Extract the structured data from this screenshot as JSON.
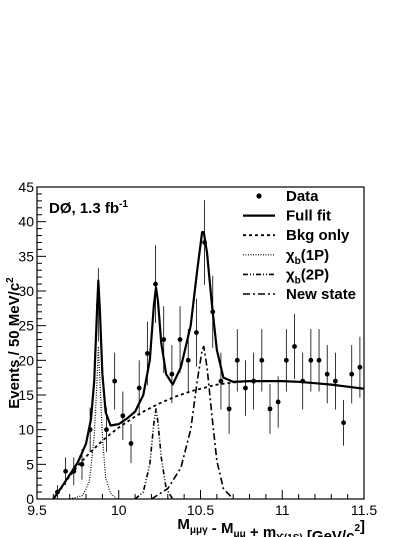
{
  "chart_data": {
    "type": "scatter",
    "annotation": {
      "main": "DØ, 1.3 fb",
      "sup": "-1"
    },
    "xlabel": {
      "parts": [
        {
          "t": "M"
        },
        {
          "t": "μμγ",
          "sub": true
        },
        {
          "t": " - M"
        },
        {
          "t": "μμ",
          "sub": true
        },
        {
          "t": " + m"
        },
        {
          "t": "ϒ(1S)",
          "sub": true
        },
        {
          "t": " [GeV/c"
        },
        {
          "t": "2",
          "sup": true
        },
        {
          "t": "]"
        }
      ]
    },
    "ylabel": {
      "main": "Events / 50 MeV/c",
      "sup": "2"
    },
    "xlim": [
      9.5,
      11.5
    ],
    "ylim": [
      0,
      45
    ],
    "x_ticks": [
      9.5,
      10,
      10.5,
      11,
      11.5
    ],
    "x_tick_labels": [
      "9.5",
      "10",
      "10.5",
      "11",
      "11.5"
    ],
    "y_ticks": [
      0,
      5,
      10,
      15,
      20,
      25,
      30,
      35,
      40,
      45
    ],
    "y_tick_labels": [
      "0",
      "5",
      "10",
      "15",
      "20",
      "25",
      "30",
      "35",
      "40",
      "45"
    ],
    "legend_position": "top-right",
    "legend": [
      {
        "key": "data",
        "label": "Data",
        "sub": ""
      },
      {
        "key": "full",
        "label": "Full fit",
        "sub": ""
      },
      {
        "key": "bkg",
        "label": "Bkg only",
        "sub": ""
      },
      {
        "key": "chi1",
        "label": "χ",
        "sub": "b",
        "suffix": "(1P)"
      },
      {
        "key": "chi2",
        "label": "χ",
        "sub": "b",
        "suffix": "(2P)"
      },
      {
        "key": "newstate",
        "label": "New state",
        "sub": ""
      }
    ],
    "data_points": [
      {
        "x": 9.625,
        "y": 1,
        "err": 1
      },
      {
        "x": 9.675,
        "y": 4,
        "err": 2
      },
      {
        "x": 9.725,
        "y": 4,
        "err": 2
      },
      {
        "x": 9.775,
        "y": 5,
        "err": 2.2
      },
      {
        "x": 9.825,
        "y": 10,
        "err": 3.2
      },
      {
        "x": 9.875,
        "y": 28,
        "err": 5.3
      },
      {
        "x": 9.925,
        "y": 10,
        "err": 3.2
      },
      {
        "x": 9.975,
        "y": 17,
        "err": 4.1
      },
      {
        "x": 10.025,
        "y": 12,
        "err": 3.5
      },
      {
        "x": 10.075,
        "y": 8,
        "err": 2.8
      },
      {
        "x": 10.125,
        "y": 16,
        "err": 4
      },
      {
        "x": 10.175,
        "y": 21,
        "err": 4.6
      },
      {
        "x": 10.225,
        "y": 31,
        "err": 5.6
      },
      {
        "x": 10.275,
        "y": 23,
        "err": 4.8
      },
      {
        "x": 10.325,
        "y": 18,
        "err": 4.2
      },
      {
        "x": 10.375,
        "y": 23,
        "err": 4.8
      },
      {
        "x": 10.425,
        "y": 20,
        "err": 4.5
      },
      {
        "x": 10.475,
        "y": 24,
        "err": 4.9
      },
      {
        "x": 10.525,
        "y": 37,
        "err": 6.1
      },
      {
        "x": 10.575,
        "y": 27,
        "err": 5.2
      },
      {
        "x": 10.625,
        "y": 17,
        "err": 4.1
      },
      {
        "x": 10.675,
        "y": 13,
        "err": 3.6
      },
      {
        "x": 10.725,
        "y": 20,
        "err": 4.5
      },
      {
        "x": 10.775,
        "y": 16,
        "err": 4
      },
      {
        "x": 10.825,
        "y": 17,
        "err": 4.1
      },
      {
        "x": 10.875,
        "y": 20,
        "err": 4.5
      },
      {
        "x": 10.925,
        "y": 13,
        "err": 3.6
      },
      {
        "x": 10.975,
        "y": 14,
        "err": 3.7
      },
      {
        "x": 11.025,
        "y": 20,
        "err": 4.5
      },
      {
        "x": 11.075,
        "y": 22,
        "err": 4.7
      },
      {
        "x": 11.125,
        "y": 17,
        "err": 4.1
      },
      {
        "x": 11.175,
        "y": 20,
        "err": 4.5
      },
      {
        "x": 11.225,
        "y": 20,
        "err": 4.5
      },
      {
        "x": 11.275,
        "y": 18,
        "err": 4.2
      },
      {
        "x": 11.325,
        "y": 17,
        "err": 4.1
      },
      {
        "x": 11.375,
        "y": 11,
        "err": 3.3
      },
      {
        "x": 11.425,
        "y": 18,
        "err": 4.2
      },
      {
        "x": 11.475,
        "y": 19,
        "err": 4.4
      }
    ],
    "curves": {
      "bkg": [
        [
          9.6,
          0
        ],
        [
          9.65,
          1.6
        ],
        [
          9.7,
          3.3
        ],
        [
          9.75,
          4.8
        ],
        [
          9.8,
          6.1
        ],
        [
          9.85,
          7.3
        ],
        [
          9.9,
          8.4
        ],
        [
          9.95,
          9.4
        ],
        [
          10.0,
          10.3
        ],
        [
          10.05,
          11.1
        ],
        [
          10.1,
          11.9
        ],
        [
          10.15,
          12.6
        ],
        [
          10.2,
          13.2
        ],
        [
          10.25,
          13.8
        ],
        [
          10.3,
          14.3
        ],
        [
          10.35,
          14.8
        ],
        [
          10.4,
          15.2
        ],
        [
          10.45,
          15.6
        ],
        [
          10.5,
          15.9
        ],
        [
          10.55,
          16.2
        ],
        [
          10.6,
          16.5
        ],
        [
          10.7,
          16.8
        ],
        [
          10.8,
          17.0
        ],
        [
          10.9,
          17.0
        ],
        [
          11.0,
          17.0
        ],
        [
          11.1,
          16.9
        ],
        [
          11.2,
          16.7
        ],
        [
          11.3,
          16.5
        ],
        [
          11.4,
          16.2
        ],
        [
          11.5,
          15.9
        ]
      ],
      "chi1": [
        [
          9.7,
          0
        ],
        [
          9.78,
          0.5
        ],
        [
          9.82,
          2.5
        ],
        [
          9.85,
          9
        ],
        [
          9.865,
          16
        ],
        [
          9.875,
          22
        ],
        [
          9.885,
          17
        ],
        [
          9.9,
          9
        ],
        [
          9.92,
          3
        ],
        [
          9.95,
          0.8
        ],
        [
          9.99,
          0
        ]
      ],
      "chi2": [
        [
          10.1,
          0
        ],
        [
          10.15,
          1
        ],
        [
          10.19,
          5
        ],
        [
          10.215,
          11
        ],
        [
          10.228,
          13
        ],
        [
          10.24,
          11
        ],
        [
          10.26,
          6
        ],
        [
          10.29,
          1.5
        ],
        [
          10.33,
          0
        ]
      ],
      "newstate": [
        [
          10.2,
          0
        ],
        [
          10.3,
          1.5
        ],
        [
          10.38,
          4.5
        ],
        [
          10.44,
          10
        ],
        [
          10.48,
          17
        ],
        [
          10.51,
          21.5
        ],
        [
          10.52,
          22
        ],
        [
          10.54,
          19
        ],
        [
          10.57,
          12
        ],
        [
          10.6,
          5.5
        ],
        [
          10.64,
          1.5
        ],
        [
          10.7,
          0
        ]
      ],
      "full": [
        [
          9.6,
          0
        ],
        [
          9.65,
          1.7
        ],
        [
          9.7,
          3.5
        ],
        [
          9.75,
          5.3
        ],
        [
          9.8,
          8
        ],
        [
          9.83,
          11.5
        ],
        [
          9.85,
          17
        ],
        [
          9.865,
          26
        ],
        [
          9.875,
          31.5
        ],
        [
          9.885,
          27
        ],
        [
          9.9,
          18
        ],
        [
          9.92,
          12.5
        ],
        [
          9.95,
          10.6
        ],
        [
          10.0,
          10.8
        ],
        [
          10.05,
          11.6
        ],
        [
          10.1,
          12.6
        ],
        [
          10.15,
          15
        ],
        [
          10.19,
          20
        ],
        [
          10.215,
          28
        ],
        [
          10.228,
          30.5
        ],
        [
          10.24,
          28.5
        ],
        [
          10.26,
          22.5
        ],
        [
          10.29,
          18
        ],
        [
          10.33,
          16.5
        ],
        [
          10.38,
          19
        ],
        [
          10.44,
          25
        ],
        [
          10.48,
          33
        ],
        [
          10.51,
          38.5
        ],
        [
          10.52,
          38.5
        ],
        [
          10.54,
          35.5
        ],
        [
          10.57,
          28
        ],
        [
          10.6,
          21.5
        ],
        [
          10.64,
          17.5
        ],
        [
          10.7,
          16.9
        ],
        [
          10.8,
          17
        ],
        [
          10.9,
          17
        ],
        [
          11.0,
          17
        ],
        [
          11.1,
          16.9
        ],
        [
          11.2,
          16.7
        ],
        [
          11.3,
          16.5
        ],
        [
          11.4,
          16.2
        ],
        [
          11.5,
          15.9
        ]
      ]
    }
  }
}
